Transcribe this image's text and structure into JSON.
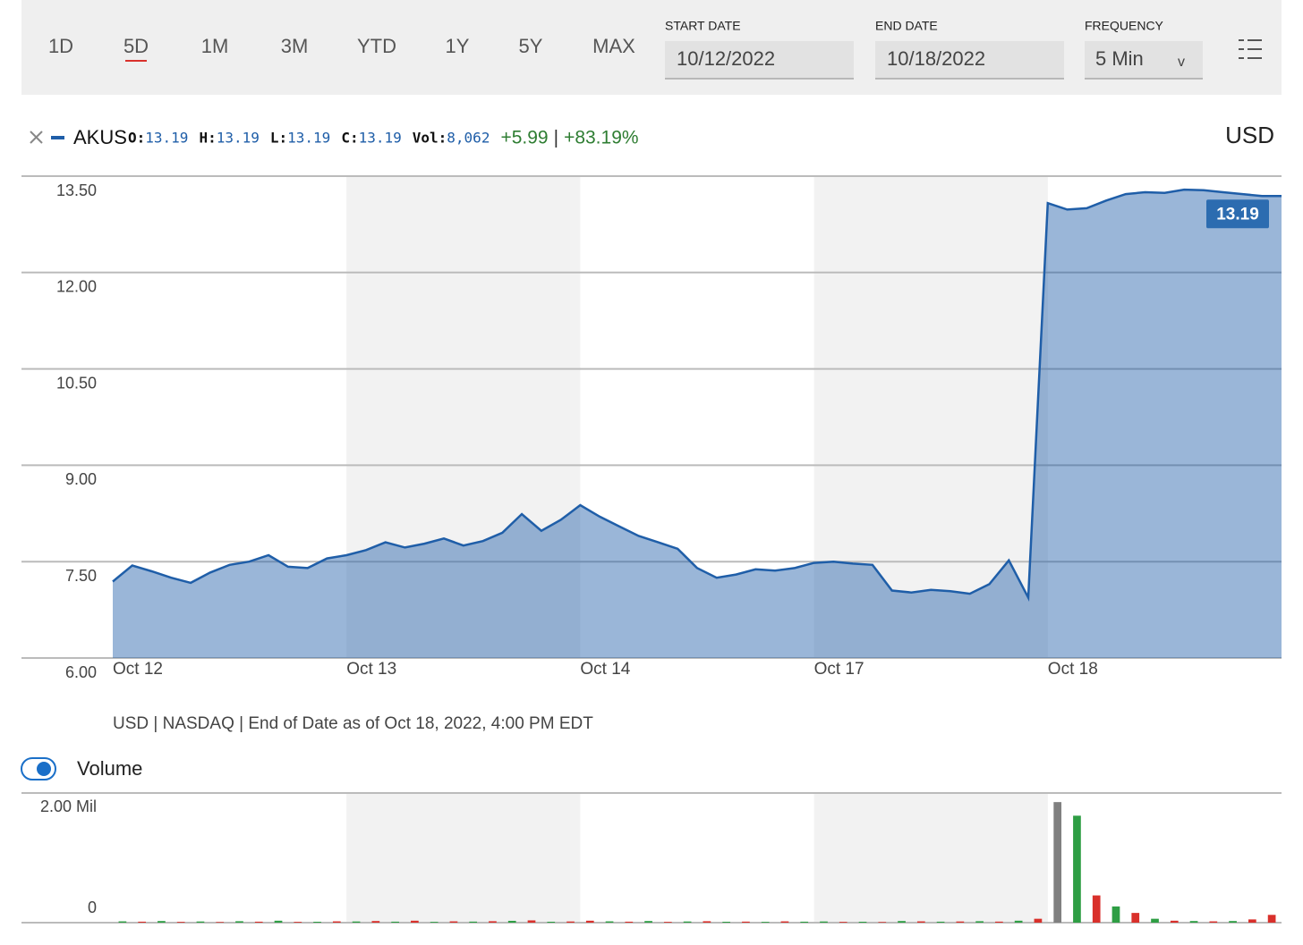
{
  "toolbar": {
    "ranges": [
      "1D",
      "5D",
      "1M",
      "3M",
      "YTD",
      "1Y",
      "5Y",
      "MAX"
    ],
    "selected": 1,
    "start_label": "START DATE",
    "start_date": "10/12/2022",
    "end_label": "END DATE",
    "end_date": "10/18/2022",
    "frequency_label": "FREQUENCY",
    "frequency": "5 Min",
    "dropdown": "v"
  },
  "legend": {
    "ticker": "AKUS",
    "quote": [
      {
        "label": "O:",
        "value": "13.19"
      },
      {
        "label": "H:",
        "value": "13.19"
      },
      {
        "label": "L:",
        "value": "13.19"
      },
      {
        "label": "C:",
        "value": "13.19"
      },
      {
        "label": "Vol:",
        "value": "8,062"
      }
    ],
    "change": "+5.99",
    "separator": "|",
    "change_pct": "+83.19%",
    "currency": "USD"
  },
  "footer": "USD | NASDAQ | End of Date as of Oct 18, 2022, 4:00 PM EDT",
  "volume_toggle": "Volume",
  "chart_data": [
    {
      "type": "area",
      "categories": [
        "Oct 12",
        null,
        null,
        null,
        null,
        null,
        null,
        null,
        null,
        null,
        null,
        null,
        "Oct 13",
        null,
        null,
        null,
        null,
        null,
        null,
        null,
        null,
        null,
        null,
        null,
        "Oct 14",
        null,
        null,
        null,
        null,
        null,
        null,
        null,
        null,
        null,
        null,
        null,
        "Oct 17",
        null,
        null,
        null,
        null,
        null,
        null,
        null,
        null,
        null,
        null,
        null,
        "Oct 18",
        null,
        null,
        null,
        null,
        null,
        null,
        null,
        null,
        null,
        null,
        null
      ],
      "series": [
        {
          "name": "AKUS",
          "color": "#1f5ea8",
          "values": [
            7.19,
            7.44,
            7.35,
            7.25,
            7.17,
            7.33,
            7.45,
            7.5,
            7.6,
            7.42,
            7.4,
            7.55,
            7.6,
            7.68,
            7.8,
            7.72,
            7.78,
            7.86,
            7.75,
            7.82,
            7.95,
            8.24,
            7.98,
            8.15,
            8.38,
            8.2,
            8.05,
            7.9,
            7.8,
            7.7,
            7.4,
            7.25,
            7.3,
            7.38,
            7.36,
            7.4,
            7.48,
            7.5,
            7.47,
            7.45,
            7.05,
            7.02,
            7.06,
            7.04,
            7.0,
            7.15,
            7.52,
            6.94,
            13.08,
            12.98,
            13.0,
            13.12,
            13.22,
            13.25,
            13.24,
            13.29,
            13.28,
            13.25,
            13.22,
            13.19
          ]
        }
      ],
      "last_value_label": "13.19",
      "ylim": [
        6,
        13.5
      ],
      "yticks": [
        {
          "value": 6,
          "label": "6.00"
        },
        {
          "value": 7.5,
          "label": "7.50"
        },
        {
          "value": 9,
          "label": "9.00"
        },
        {
          "value": 10.5,
          "label": "10.50"
        },
        {
          "value": 12,
          "label": "12.00"
        },
        {
          "value": 13.5,
          "label": "13.50"
        }
      ],
      "grid": true
    },
    {
      "type": "bar",
      "series": [
        {
          "name": "Volume",
          "values": [
            20000,
            15000,
            25000,
            12000,
            18000,
            10000,
            22000,
            15000,
            30000,
            12000,
            14000,
            20000,
            18000,
            25000,
            15000,
            30000,
            12000,
            20000,
            16000,
            22000,
            28000,
            35000,
            14000,
            18000,
            30000,
            20000,
            15000,
            25000,
            12000,
            18000,
            22000,
            14000,
            16000,
            12000,
            20000,
            15000,
            18000,
            12000,
            14000,
            10000,
            25000,
            20000,
            15000,
            18000,
            22000,
            16000,
            30000,
            60000,
            1860000,
            1650000,
            420000,
            250000,
            150000,
            60000,
            30000,
            25000,
            20000,
            25000,
            50000,
            120000
          ],
          "colors": [
            "#2e9e44",
            "#d9302b",
            "#2e9e44",
            "#d9302b",
            "#2e9e44",
            "#d9302b",
            "#2e9e44",
            "#d9302b",
            "#2e9e44",
            "#d9302b",
            "#2e9e44",
            "#d9302b",
            "#2e9e44",
            "#d9302b",
            "#2e9e44",
            "#d9302b",
            "#2e9e44",
            "#d9302b",
            "#2e9e44",
            "#d9302b",
            "#2e9e44",
            "#d9302b",
            "#2e9e44",
            "#d9302b",
            "#d9302b",
            "#2e9e44",
            "#d9302b",
            "#2e9e44",
            "#d9302b",
            "#2e9e44",
            "#d9302b",
            "#2e9e44",
            "#d9302b",
            "#2e9e44",
            "#d9302b",
            "#2e9e44",
            "#2e9e44",
            "#d9302b",
            "#2e9e44",
            "#d9302b",
            "#2e9e44",
            "#d9302b",
            "#2e9e44",
            "#d9302b",
            "#2e9e44",
            "#d9302b",
            "#2e9e44",
            "#d9302b",
            "#808080",
            "#2e9e44",
            "#d9302b",
            "#2e9e44",
            "#d9302b",
            "#2e9e44",
            "#d9302b",
            "#2e9e44",
            "#d9302b",
            "#2e9e44",
            "#d9302b",
            "#d9302b"
          ]
        }
      ],
      "ylim": [
        0,
        2000000
      ],
      "yticks": [
        0,
        {
          "value": 2000000,
          "label": "2.00 Mil"
        }
      ],
      "grid": true
    }
  ]
}
